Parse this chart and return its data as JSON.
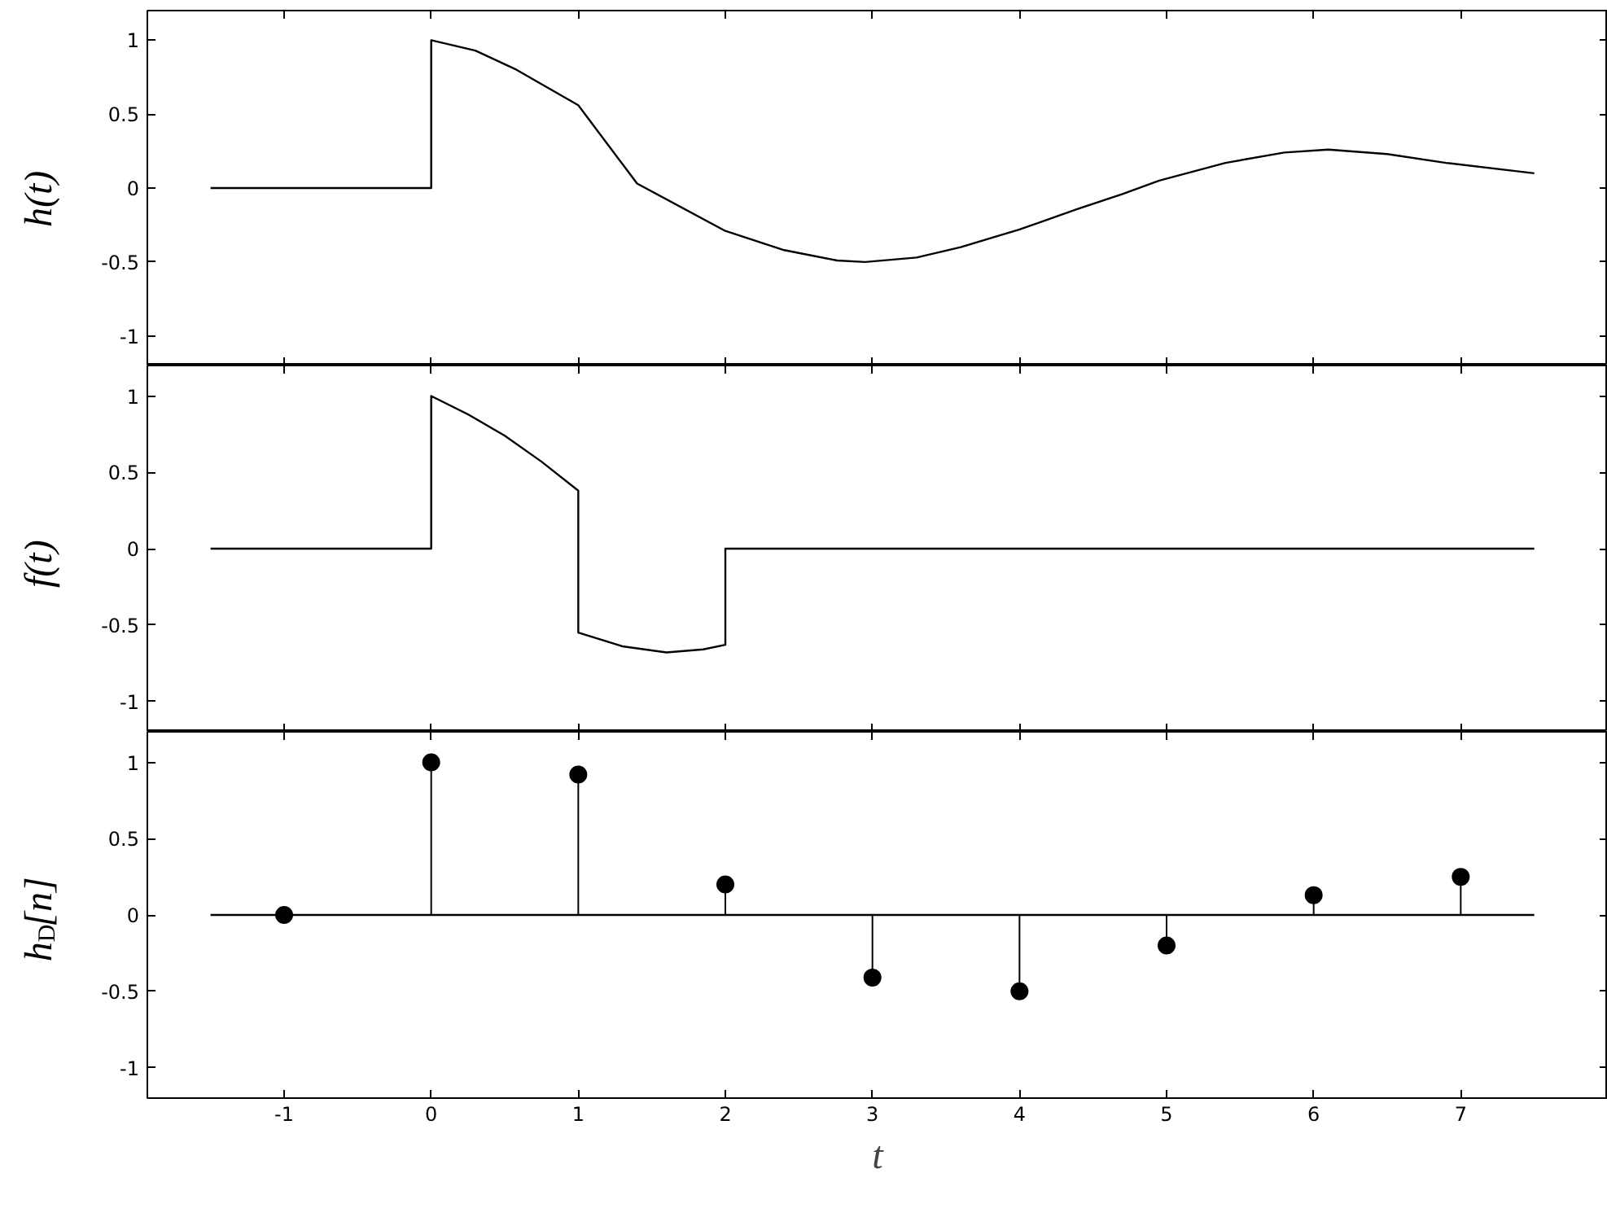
{
  "chart_data": [
    {
      "type": "line",
      "ylabel": "h(t)",
      "tick_labels": "y",
      "xlim": [
        -1.93,
        8.0
      ],
      "ylim": [
        -1.2,
        1.2
      ],
      "xticks": [
        -1,
        0,
        1,
        2,
        3,
        4,
        5,
        6,
        7
      ],
      "yticks": [
        -1,
        -0.5,
        0,
        0.5,
        1
      ],
      "grid": false,
      "series": [
        {
          "color": "#000000",
          "x": [
            -1.5,
            0,
            0,
            0.3,
            0.58,
            1.0,
            1.4,
            2.0,
            2.4,
            2.76,
            2.95,
            3.3,
            3.6,
            4.0,
            4.4,
            4.7,
            4.95,
            5.4,
            5.8,
            6.1,
            6.5,
            6.9,
            7.5
          ],
          "values": [
            0,
            0,
            1.0,
            0.93,
            0.8,
            0.56,
            0.03,
            -0.29,
            -0.42,
            -0.49,
            -0.5,
            -0.47,
            -0.4,
            -0.28,
            -0.14,
            -0.04,
            0.05,
            0.17,
            0.24,
            0.26,
            0.23,
            0.17,
            0.1
          ]
        }
      ]
    },
    {
      "type": "line",
      "ylabel": "f(t)",
      "tick_labels": "y",
      "xlim": [
        -1.93,
        8.0
      ],
      "ylim": [
        -1.2,
        1.2
      ],
      "xticks": [
        -1,
        0,
        1,
        2,
        3,
        4,
        5,
        6,
        7
      ],
      "yticks": [
        -1,
        -0.5,
        0,
        0.5,
        1
      ],
      "grid": false,
      "series": [
        {
          "color": "#000000",
          "x": [
            -1.5,
            0,
            0,
            0.25,
            0.5,
            0.75,
            1,
            1,
            1.3,
            1.6,
            1.85,
            2,
            2,
            7.5
          ],
          "values": [
            0,
            0,
            1.0,
            0.88,
            0.74,
            0.57,
            0.38,
            -0.55,
            -0.64,
            -0.68,
            -0.66,
            -0.63,
            0,
            0
          ]
        }
      ]
    },
    {
      "type": "lollipop",
      "xlabel": "t",
      "ylabel": "h$_{D}$[n]",
      "xlim": [
        -1.93,
        8.0
      ],
      "ylim": [
        -1.2,
        1.2
      ],
      "xticks": [
        -1,
        0,
        1,
        2,
        3,
        4,
        5,
        6,
        7
      ],
      "yticks": [
        -1,
        -0.5,
        0,
        0.5,
        1
      ],
      "grid": false,
      "series": [
        {
          "color": "#000000",
          "marker": "circle",
          "x": [
            -1,
            0,
            1,
            2,
            3,
            4,
            5,
            6,
            7
          ],
          "values": [
            0,
            1.0,
            0.92,
            0.2,
            -0.41,
            -0.5,
            -0.2,
            0.13,
            0.25
          ]
        },
        {
          "type": "line",
          "color": "#000000",
          "x": [
            -1.5,
            7.5
          ],
          "values": [
            0,
            0
          ]
        }
      ]
    }
  ]
}
